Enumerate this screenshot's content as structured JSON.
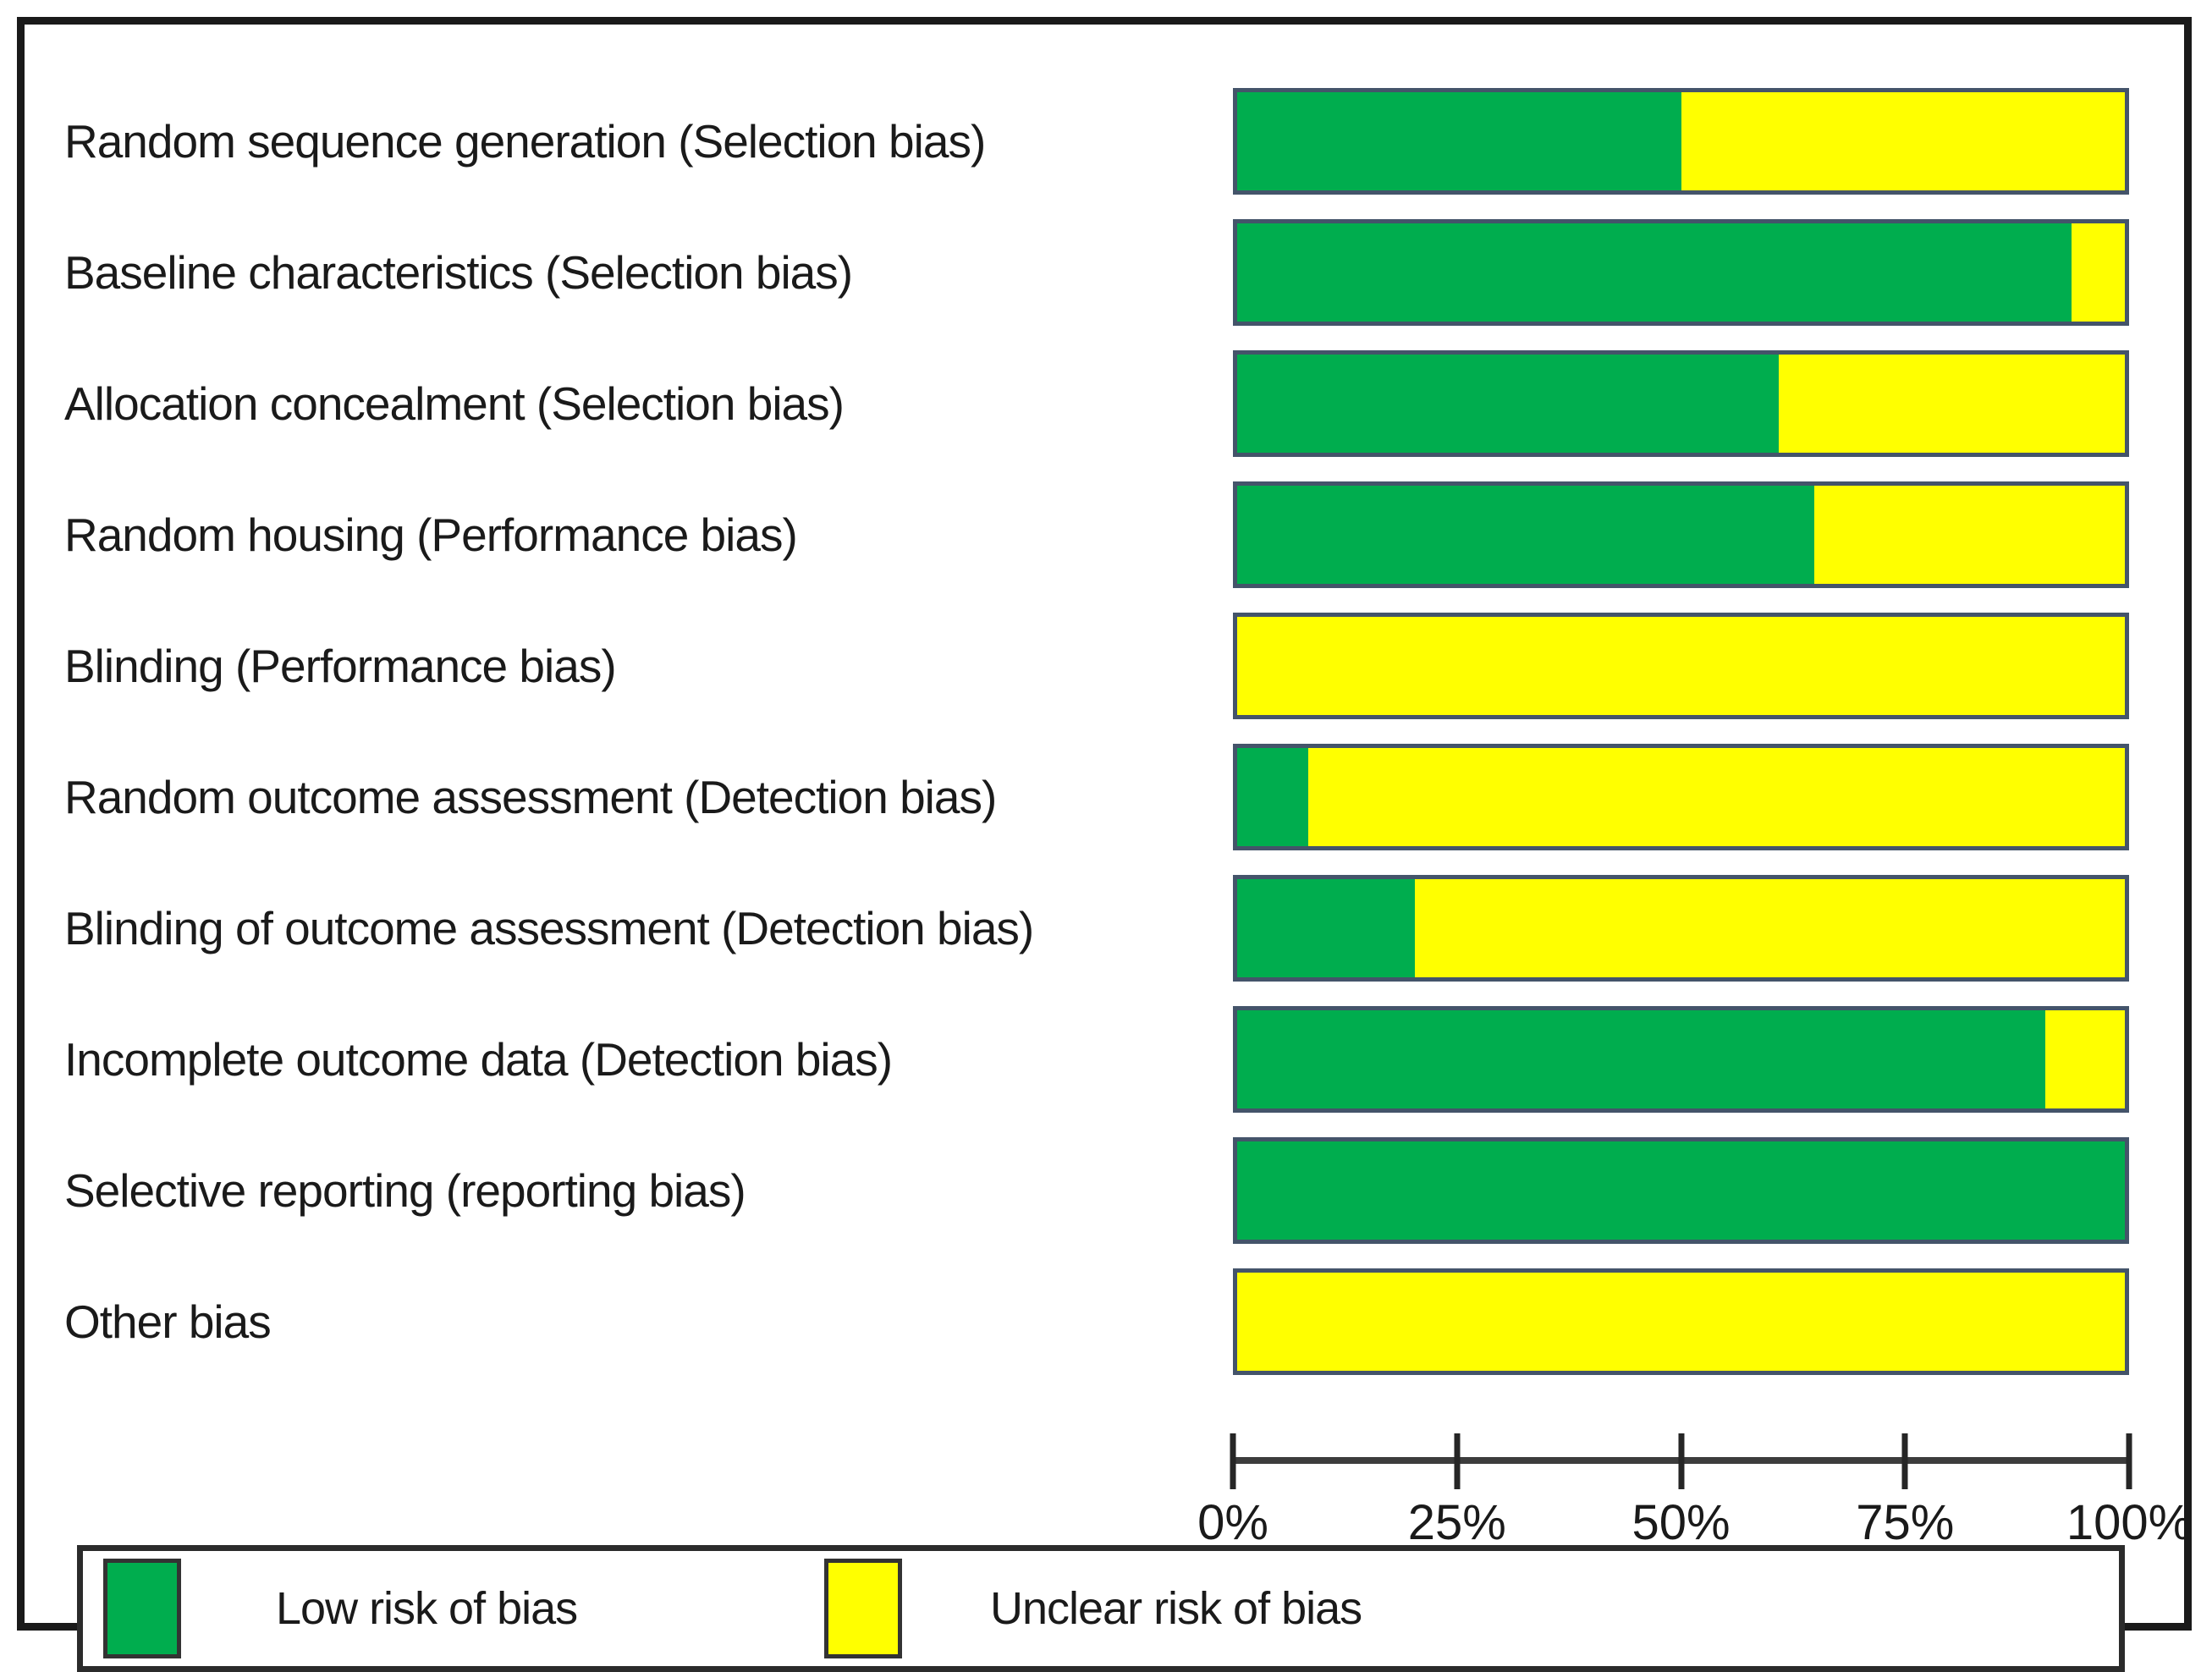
{
  "chart_data": {
    "type": "bar",
    "orientation": "horizontal",
    "stacked": true,
    "title": "",
    "xlabel": "",
    "ylabel": "",
    "xlim": [
      0,
      100
    ],
    "grid": false,
    "legend_position": "bottom",
    "categories": [
      "Random sequence generation (Selection bias)",
      "Baseline characteristics (Selection bias)",
      "Allocation concealment (Selection bias)",
      "Random housing (Performance bias)",
      "Blinding (Performance bias)",
      "Random outcome assessment (Detection bias)",
      "Blinding of outcome assessment (Detection bias)",
      "Incomplete outcome data (Detection bias)",
      "Selective reporting (reporting bias)",
      "Other bias"
    ],
    "series": [
      {
        "name": "Low risk of bias",
        "color": "#00ad4e",
        "values": [
          50,
          94,
          61,
          65,
          0,
          8,
          20,
          91,
          100,
          0
        ]
      },
      {
        "name": "Unclear risk of bias",
        "color": "#ffff00",
        "values": [
          50,
          6,
          39,
          35,
          100,
          92,
          80,
          9,
          0,
          100
        ]
      }
    ],
    "x_ticks": [
      {
        "value": 0,
        "label": "0%"
      },
      {
        "value": 25,
        "label": "25%"
      },
      {
        "value": 50,
        "label": "50%"
      },
      {
        "value": 75,
        "label": "75%"
      },
      {
        "value": 100,
        "label": "100%"
      }
    ]
  },
  "legend": {
    "items": [
      {
        "label": "Low risk of bias",
        "color": "#00ad4e"
      },
      {
        "label": "Unclear risk of bias",
        "color": "#ffff00"
      }
    ]
  },
  "colors": {
    "low_risk": "#00ad4e",
    "unclear_risk": "#ffff00",
    "bar_border": "#44546a",
    "figure_border": "#1a1a1a",
    "axis": "#3c3c3c",
    "text": "#1a1a1a"
  }
}
